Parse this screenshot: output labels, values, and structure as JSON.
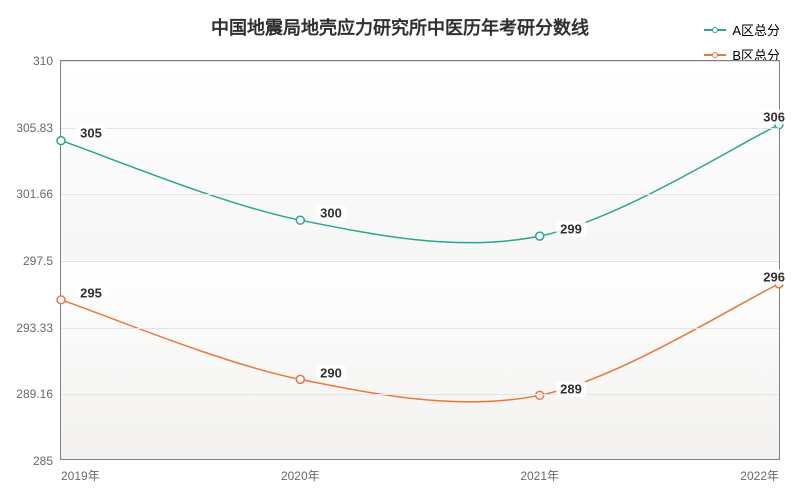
{
  "chart": {
    "type": "line",
    "title": "中国地震局地壳应力研究所中医历年考研分数线",
    "title_fontsize": 18,
    "background_color": "#ffffff",
    "plot_bg_top": "#ffffff",
    "plot_bg_mid": "#f7f6f6",
    "border_color": "#808080",
    "grid_color": "#e5e4e2",
    "label_color": "#686868",
    "text_color": "#303030",
    "x": {
      "categories": [
        "2019年",
        "2020年",
        "2021年",
        "2022年"
      ],
      "positions_pct": [
        0,
        33.33,
        66.67,
        100
      ]
    },
    "y": {
      "min": 285,
      "max": 310,
      "ticks": [
        285,
        289.16,
        293.33,
        297.5,
        301.66,
        305.83,
        310
      ],
      "tick_labels": [
        "285",
        "289.16",
        "293.33",
        "297.5",
        "301.66",
        "305.83",
        "310"
      ]
    },
    "series": [
      {
        "name": "A区总分",
        "color": "#2aa590",
        "line_width": 1.5,
        "marker": "circle",
        "marker_size": 4,
        "values": [
          305,
          300,
          299,
          306
        ],
        "smooth": true
      },
      {
        "name": "B区总分",
        "color": "#e9763e",
        "line_width": 1.5,
        "marker": "circle",
        "marker_size": 4,
        "values": [
          295,
          290,
          289,
          296
        ],
        "smooth": true
      }
    ],
    "legend": {
      "position": "top-right",
      "fontsize": 13
    },
    "data_label_fontsize": 13,
    "data_label_fontweight": "bold"
  }
}
